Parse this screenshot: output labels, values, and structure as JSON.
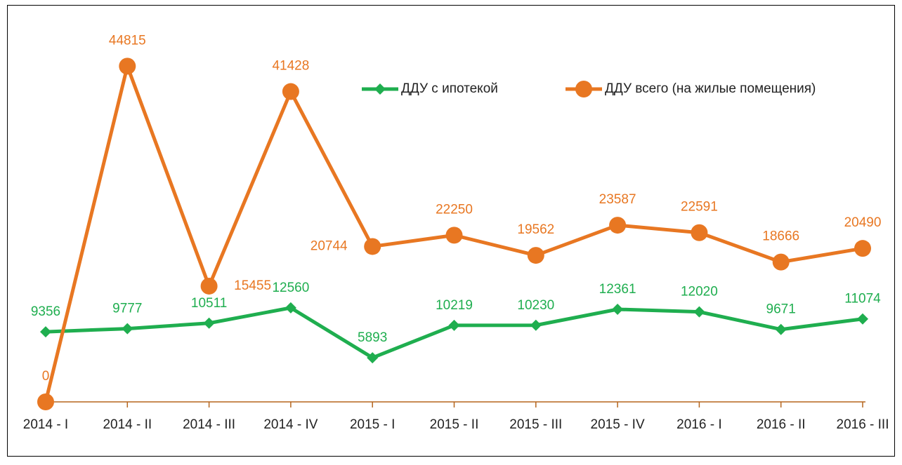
{
  "chart_data": {
    "type": "line",
    "categories": [
      "2014 - I",
      "2014 - II",
      "2014 - III",
      "2014 - IV",
      "2015 - I",
      "2015 - II",
      "2015 - III",
      "2015 - IV",
      "2016 - I",
      "2016 - II",
      "2016 - III"
    ],
    "series": [
      {
        "name": "ДДУ с ипотекой",
        "color": "#1fae4f",
        "marker": "diamond",
        "values": [
          9356,
          9777,
          10511,
          12560,
          5893,
          10219,
          10230,
          12361,
          12020,
          9671,
          11074
        ]
      },
      {
        "name": "ДДУ всего (на жилые помещения)",
        "color": "#e87722",
        "marker": "circle",
        "values": [
          0,
          44815,
          15455,
          41428,
          20744,
          22250,
          19562,
          23587,
          22591,
          18666,
          20490
        ]
      }
    ],
    "ylim": [
      0,
      50000
    ]
  }
}
